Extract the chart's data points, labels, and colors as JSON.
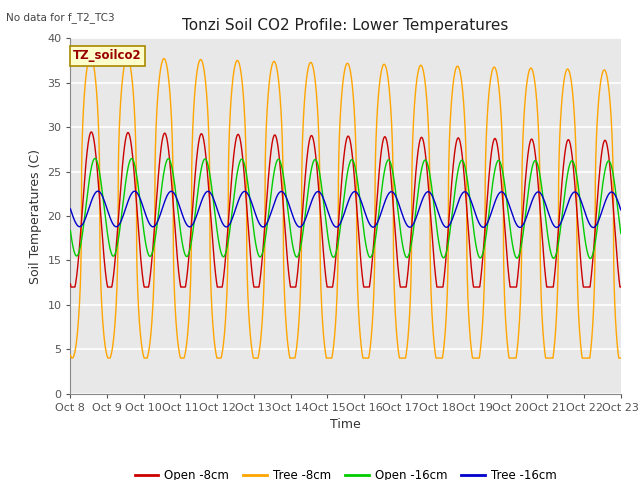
{
  "title": "Tonzi Soil CO2 Profile: Lower Temperatures",
  "subtitle": "No data for f_T2_TC3",
  "ylabel": "Soil Temperatures (C)",
  "xlabel": "Time",
  "legend_label": "TZ_soilco2",
  "ylim": [
    0,
    40
  ],
  "yticks": [
    0,
    5,
    10,
    15,
    20,
    25,
    30,
    35,
    40
  ],
  "xtick_labels": [
    "Oct 8",
    "Oct 9",
    "Oct 10",
    "Oct 11",
    "Oct 12",
    "Oct 13",
    "Oct 14",
    "Oct 15",
    "Oct 16",
    "Oct 17",
    "Oct 18",
    "Oct 19",
    "Oct 20",
    "Oct 21",
    "Oct 22",
    "Oct 23"
  ],
  "colors": {
    "open_8cm": "#cc0000",
    "tree_8cm": "#ffa500",
    "open_16cm": "#00cc00",
    "tree_16cm": "#0000cc"
  },
  "bg_color": "#e8e8e8",
  "legend_entries": [
    "Open -8cm",
    "Tree -8cm",
    "Open -16cm",
    "Tree -16cm"
  ],
  "title_fontsize": 11,
  "axis_fontsize": 9,
  "tick_fontsize": 8
}
